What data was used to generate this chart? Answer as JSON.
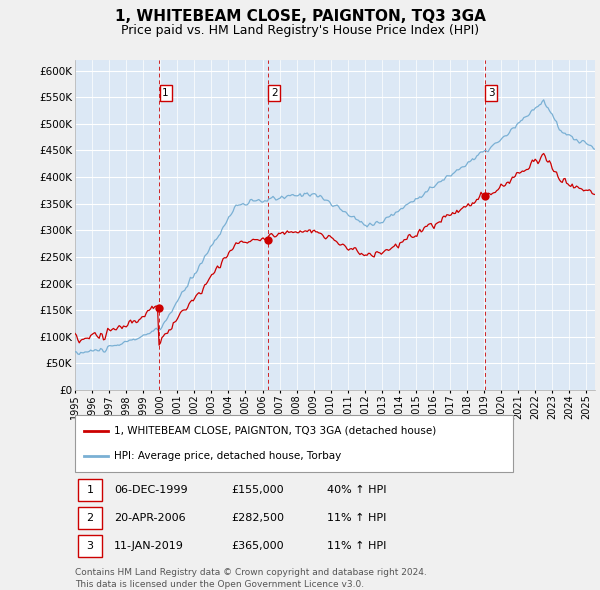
{
  "title": "1, WHITEBEAM CLOSE, PAIGNTON, TQ3 3GA",
  "subtitle": "Price paid vs. HM Land Registry's House Price Index (HPI)",
  "title_fontsize": 11,
  "subtitle_fontsize": 9,
  "ylim": [
    0,
    620000
  ],
  "yticks": [
    0,
    50000,
    100000,
    150000,
    200000,
    250000,
    300000,
    350000,
    400000,
    450000,
    500000,
    550000,
    600000
  ],
  "ytick_labels": [
    "£0",
    "£50K",
    "£100K",
    "£150K",
    "£200K",
    "£250K",
    "£300K",
    "£350K",
    "£400K",
    "£450K",
    "£500K",
    "£550K",
    "£600K"
  ],
  "xlim_start": 1995.0,
  "xlim_end": 2025.5,
  "fig_bg_color": "#f0f0f0",
  "plot_bg_color": "#dce8f5",
  "grid_color": "#ffffff",
  "red_line_color": "#cc0000",
  "blue_line_color": "#7ab0d4",
  "sales": [
    {
      "label": "1",
      "year": 1999.92,
      "price": 155000,
      "date": "06-DEC-1999",
      "pct": "40%",
      "arrow": "↑"
    },
    {
      "label": "2",
      "year": 2006.3,
      "price": 282500,
      "date": "20-APR-2006",
      "pct": "11%",
      "arrow": "↑"
    },
    {
      "label": "3",
      "year": 2019.03,
      "price": 365000,
      "date": "11-JAN-2019",
      "pct": "11%",
      "arrow": "↑"
    }
  ],
  "legend_line1": "1, WHITEBEAM CLOSE, PAIGNTON, TQ3 3GA (detached house)",
  "legend_line2": "HPI: Average price, detached house, Torbay",
  "footer1": "Contains HM Land Registry data © Crown copyright and database right 2024.",
  "footer2": "This data is licensed under the Open Government Licence v3.0."
}
